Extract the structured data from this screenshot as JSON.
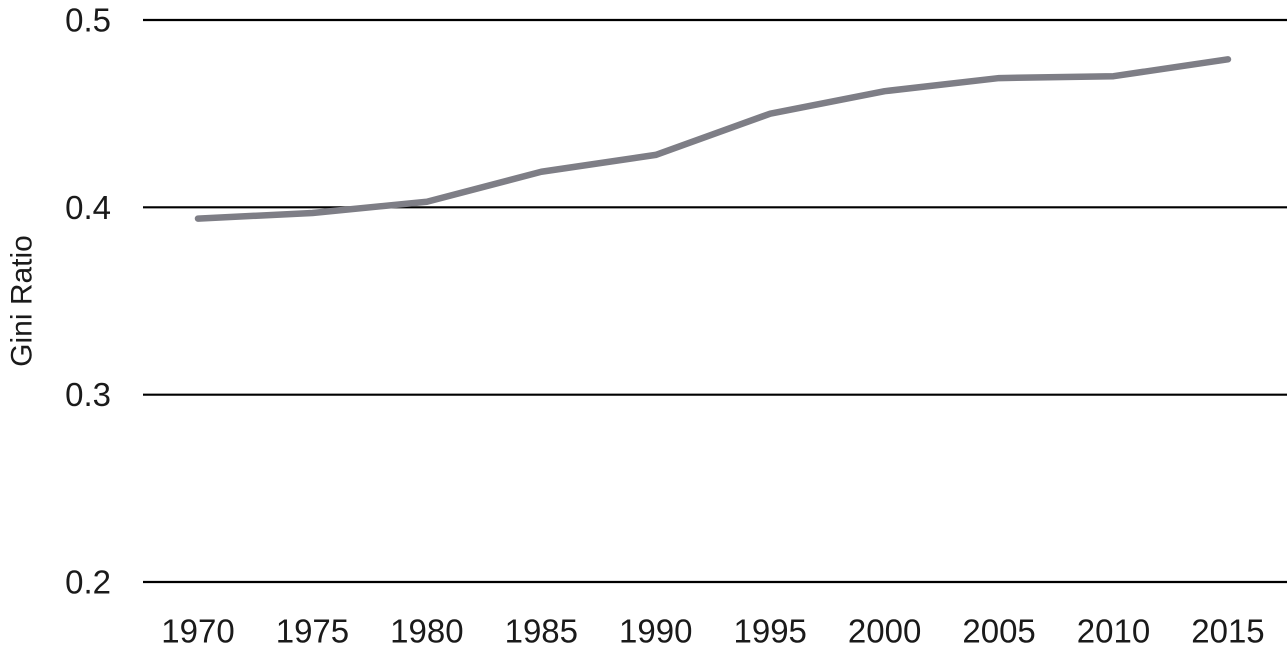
{
  "chart_data": {
    "type": "line",
    "title": "",
    "xlabel": "",
    "ylabel": "Gini Ratio",
    "x": [
      1970,
      1975,
      1980,
      1985,
      1990,
      1995,
      2000,
      2005,
      2010,
      2015
    ],
    "series": [
      {
        "name": "Gini Ratio",
        "values": [
          0.394,
          0.397,
          0.403,
          0.419,
          0.428,
          0.45,
          0.462,
          0.469,
          0.47,
          0.479
        ]
      }
    ],
    "ylim": [
      0.2,
      0.5
    ],
    "yticks": [
      0.5,
      0.4,
      0.3,
      0.2
    ],
    "ytick_labels": [
      "0.5",
      "0.4",
      "0.3",
      "0.2"
    ],
    "xtick_labels": [
      "1970",
      "1975",
      "1980",
      "1985",
      "1990",
      "1995",
      "2000",
      "2005",
      "2010",
      "2015"
    ],
    "grid": "horizontal-only",
    "legend": "none",
    "colors": {
      "line": "#7e7e86",
      "gridline": "#000000",
      "text": "#1a1a1a",
      "background": "#ffffff"
    }
  }
}
